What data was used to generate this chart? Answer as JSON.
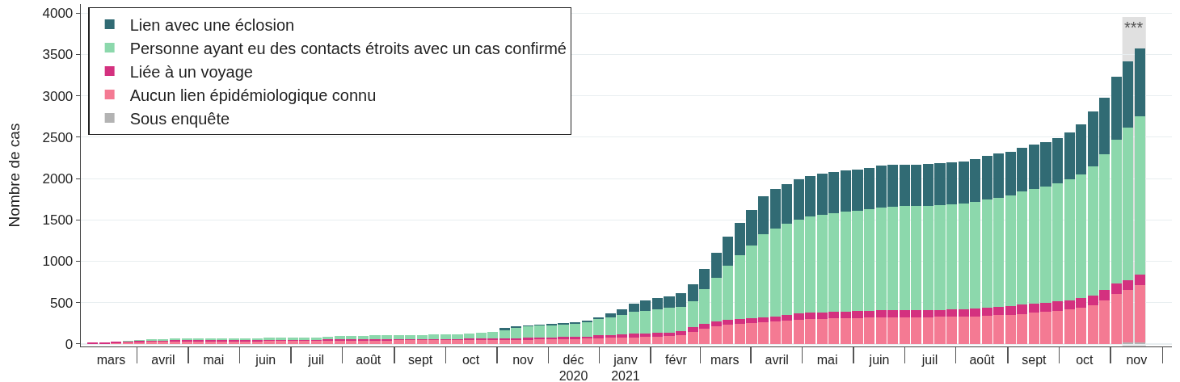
{
  "chart_data": {
    "type": "bar",
    "stacked": true,
    "ylabel": "Nombre de cas",
    "x": [
      "2020-03-05",
      "2020-03-12",
      "2020-03-19",
      "2020-03-26",
      "2020-04-02",
      "2020-04-09",
      "2020-04-16",
      "2020-04-23",
      "2020-04-30",
      "2020-05-07",
      "2020-05-14",
      "2020-05-21",
      "2020-05-28",
      "2020-06-04",
      "2020-06-11",
      "2020-06-18",
      "2020-06-25",
      "2020-07-02",
      "2020-07-09",
      "2020-07-16",
      "2020-07-23",
      "2020-07-30",
      "2020-08-06",
      "2020-08-13",
      "2020-08-20",
      "2020-08-27",
      "2020-09-03",
      "2020-09-10",
      "2020-09-17",
      "2020-09-24",
      "2020-10-01",
      "2020-10-08",
      "2020-10-15",
      "2020-10-22",
      "2020-10-29",
      "2020-11-05",
      "2020-11-12",
      "2020-11-19",
      "2020-11-26",
      "2020-12-03",
      "2020-12-10",
      "2020-12-17",
      "2020-12-24",
      "2020-12-31",
      "2021-01-07",
      "2021-01-14",
      "2021-01-21",
      "2021-01-28",
      "2021-02-04",
      "2021-02-11",
      "2021-02-18",
      "2021-02-25",
      "2021-03-04",
      "2021-03-11",
      "2021-03-18",
      "2021-03-25",
      "2021-04-01",
      "2021-04-08",
      "2021-04-15",
      "2021-04-22",
      "2021-04-29",
      "2021-05-06",
      "2021-05-13",
      "2021-05-20",
      "2021-05-27",
      "2021-06-03",
      "2021-06-10",
      "2021-06-17",
      "2021-06-24",
      "2021-07-01",
      "2021-07-08",
      "2021-07-15",
      "2021-07-22",
      "2021-07-29",
      "2021-08-05",
      "2021-08-12",
      "2021-08-19",
      "2021-08-26",
      "2021-09-02",
      "2021-09-09",
      "2021-09-16",
      "2021-09-23",
      "2021-09-30",
      "2021-10-07",
      "2021-10-14",
      "2021-10-21",
      "2021-10-28",
      "2021-11-04",
      "2021-11-11",
      "2021-11-18"
    ],
    "series": [
      {
        "name": "Sous enquête",
        "color": "#b3b3b3",
        "values": [
          null,
          null,
          null,
          null,
          null,
          null,
          null,
          null,
          null,
          null,
          null,
          null,
          null,
          null,
          null,
          null,
          null,
          null,
          null,
          null,
          null,
          null,
          null,
          null,
          null,
          null,
          null,
          null,
          null,
          null,
          null,
          null,
          null,
          null,
          null,
          null,
          null,
          null,
          null,
          null,
          null,
          null,
          null,
          null,
          null,
          null,
          null,
          null,
          null,
          null,
          null,
          null,
          null,
          null,
          null,
          null,
          null,
          null,
          null,
          null,
          null,
          null,
          null,
          null,
          null,
          null,
          null,
          null,
          null,
          null,
          null,
          null,
          null,
          null,
          null,
          null,
          null,
          null,
          null,
          null,
          null,
          null,
          null,
          null,
          null,
          null,
          null,
          null,
          20,
          20
        ]
      },
      {
        "name": "Aucun lien épidémiologique connu",
        "color": "#f47a93",
        "values": [
          null,
          null,
          10,
          20,
          20,
          30,
          30,
          30,
          30,
          30,
          30,
          30,
          30,
          30,
          30,
          40,
          40,
          40,
          40,
          40,
          40,
          40,
          40,
          40,
          40,
          40,
          50,
          50,
          50,
          50,
          50,
          50,
          50,
          50,
          50,
          50,
          50,
          50,
          60,
          60,
          60,
          60,
          70,
          70,
          80,
          80,
          80,
          90,
          90,
          100,
          110,
          150,
          180,
          210,
          230,
          240,
          250,
          260,
          270,
          280,
          290,
          300,
          300,
          310,
          310,
          310,
          320,
          320,
          320,
          320,
          320,
          320,
          330,
          330,
          330,
          330,
          340,
          350,
          350,
          360,
          380,
          390,
          400,
          420,
          440,
          470,
          530,
          600,
          630,
          690
        ]
      },
      {
        "name": "Liée à un voyage",
        "color": "#d4317f",
        "values": [
          20,
          20,
          20,
          10,
          20,
          10,
          10,
          20,
          20,
          20,
          20,
          20,
          20,
          20,
          20,
          10,
          10,
          10,
          10,
          10,
          20,
          20,
          20,
          20,
          20,
          20,
          10,
          10,
          10,
          10,
          10,
          10,
          20,
          20,
          20,
          20,
          20,
          30,
          20,
          20,
          30,
          30,
          20,
          40,
          30,
          40,
          50,
          40,
          50,
          40,
          50,
          50,
          60,
          60,
          60,
          60,
          60,
          60,
          60,
          70,
          80,
          80,
          80,
          80,
          80,
          90,
          80,
          90,
          90,
          90,
          90,
          90,
          80,
          90,
          90,
          100,
          100,
          100,
          110,
          120,
          110,
          110,
          120,
          110,
          120,
          120,
          120,
          130,
          120,
          130
        ]
      },
      {
        "name": "Personne ayant eu des contacts étroits avec un cas confirmé",
        "color": "#8cd8ac",
        "values": [
          null,
          null,
          null,
          10,
          10,
          20,
          20,
          20,
          20,
          20,
          20,
          20,
          20,
          20,
          20,
          30,
          30,
          30,
          30,
          30,
          30,
          40,
          40,
          40,
          50,
          50,
          50,
          50,
          50,
          60,
          60,
          60,
          60,
          70,
          80,
          100,
          120,
          130,
          140,
          140,
          140,
          150,
          170,
          190,
          210,
          230,
          260,
          270,
          280,
          300,
          290,
          320,
          420,
          530,
          660,
          770,
          880,
          1010,
          1070,
          1100,
          1130,
          1160,
          1180,
          1190,
          1210,
          1210,
          1230,
          1240,
          1250,
          1260,
          1260,
          1260,
          1270,
          1270,
          1280,
          1290,
          1310,
          1320,
          1340,
          1360,
          1380,
          1400,
          1420,
          1460,
          1490,
          1560,
          1640,
          1740,
          1850,
          1910
        ]
      },
      {
        "name": "Lien avec une éclosion",
        "color": "#316b74",
        "values": [
          null,
          null,
          null,
          null,
          null,
          null,
          null,
          null,
          null,
          null,
          null,
          null,
          null,
          null,
          null,
          null,
          null,
          null,
          null,
          null,
          null,
          null,
          null,
          null,
          null,
          null,
          null,
          null,
          null,
          null,
          null,
          null,
          null,
          null,
          null,
          20,
          20,
          10,
          10,
          20,
          20,
          20,
          20,
          20,
          50,
          70,
          100,
          130,
          140,
          140,
          160,
          200,
          250,
          300,
          350,
          390,
          430,
          460,
          470,
          480,
          490,
          490,
          500,
          500,
          500,
          500,
          500,
          510,
          510,
          500,
          500,
          510,
          510,
          510,
          510,
          520,
          520,
          530,
          520,
          530,
          540,
          540,
          550,
          570,
          610,
          660,
          690,
          760,
          800,
          820
        ]
      }
    ],
    "xlim": [
      "2020-02-27",
      "2021-12-07"
    ],
    "xticks": [
      {
        "value": "2020-03-16",
        "label": "mars"
      },
      {
        "value": "2020-04-16",
        "label": "avril"
      },
      {
        "value": "2020-05-16",
        "label": "mai"
      },
      {
        "value": "2020-06-16",
        "label": "juin"
      },
      {
        "value": "2020-07-16",
        "label": "juil"
      },
      {
        "value": "2020-08-16",
        "label": "août"
      },
      {
        "value": "2020-09-16",
        "label": "sept"
      },
      {
        "value": "2020-10-16",
        "label": "oct"
      },
      {
        "value": "2020-11-16",
        "label": "nov"
      },
      {
        "value": "2020-12-16",
        "label": "déc\n2020"
      },
      {
        "value": "2021-01-16",
        "label": "janv\n2021"
      },
      {
        "value": "2021-02-15",
        "label": "févr"
      },
      {
        "value": "2021-03-16",
        "label": "mars"
      },
      {
        "value": "2021-04-16",
        "label": "avril"
      },
      {
        "value": "2021-05-16",
        "label": "mai"
      },
      {
        "value": "2021-06-16",
        "label": "juin"
      },
      {
        "value": "2021-07-16",
        "label": "juil"
      },
      {
        "value": "2021-08-16",
        "label": "août"
      },
      {
        "value": "2021-09-16",
        "label": "sept"
      },
      {
        "value": "2021-10-16",
        "label": "oct"
      },
      {
        "value": "2021-11-16",
        "label": "nov"
      }
    ],
    "ylim": [
      -30,
      4110
    ],
    "yticks": [
      0,
      500,
      1000,
      1500,
      2000,
      2500,
      3000,
      3500,
      4000
    ],
    "grid": "y",
    "legend": "top left",
    "bands": [
      {
        "axis": "x",
        "from": "2021-11-07T12:00",
        "to": "2021-11-21T12:00",
        "label": "***",
        "color": "#e0e0e0"
      }
    ]
  }
}
